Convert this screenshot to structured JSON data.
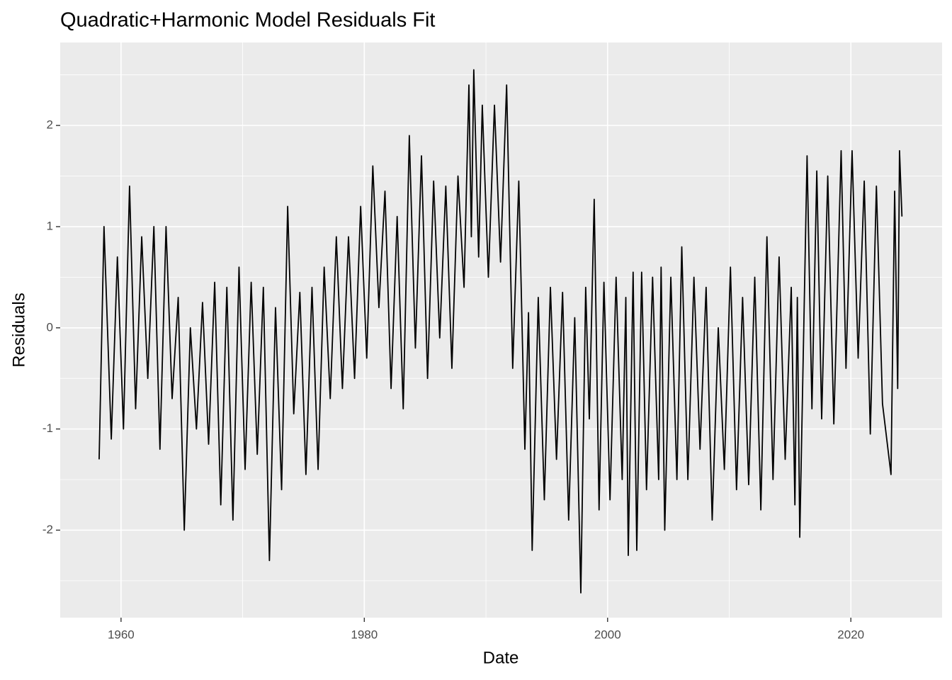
{
  "chart_data": {
    "type": "line",
    "title": "Quadratic+Harmonic Model Residuals Fit",
    "x_label": "Date",
    "y_label": "Residuals",
    "x": [
      1958.2,
      1958.6,
      1959.2,
      1959.7,
      1960.2,
      1960.7,
      1961.2,
      1961.7,
      1962.2,
      1962.7,
      1963.2,
      1963.7,
      1964.2,
      1964.7,
      1965.2,
      1965.7,
      1966.2,
      1966.7,
      1967.2,
      1967.7,
      1968.2,
      1968.7,
      1969.2,
      1969.7,
      1970.2,
      1970.7,
      1971.2,
      1971.7,
      1972.2,
      1972.7,
      1973.2,
      1973.7,
      1974.2,
      1974.7,
      1975.2,
      1975.7,
      1976.2,
      1976.7,
      1977.2,
      1977.7,
      1978.2,
      1978.7,
      1979.2,
      1979.7,
      1980.2,
      1980.7,
      1981.2,
      1981.7,
      1982.2,
      1982.7,
      1983.2,
      1983.7,
      1984.2,
      1984.7,
      1985.2,
      1985.7,
      1986.2,
      1986.7,
      1987.2,
      1987.7,
      1988.2,
      1988.6,
      1988.8,
      1989.0,
      1989.4,
      1989.7,
      1990.2,
      1990.7,
      1991.2,
      1991.7,
      1992.2,
      1992.7,
      1993.2,
      1993.5,
      1993.8,
      1994.3,
      1994.8,
      1995.3,
      1995.8,
      1996.3,
      1996.8,
      1997.3,
      1997.8,
      1998.2,
      1998.5,
      1998.9,
      1999.3,
      1999.7,
      2000.2,
      2000.7,
      2001.2,
      2001.5,
      2001.7,
      2002.1,
      2002.4,
      2002.8,
      2003.2,
      2003.7,
      2004.2,
      2004.4,
      2004.7,
      2005.2,
      2005.7,
      2006.1,
      2006.6,
      2007.1,
      2007.6,
      2008.1,
      2008.6,
      2009.1,
      2009.6,
      2010.1,
      2010.6,
      2011.1,
      2011.6,
      2012.1,
      2012.6,
      2013.1,
      2013.6,
      2014.1,
      2014.6,
      2015.1,
      2015.4,
      2015.6,
      2015.8,
      2016.4,
      2016.8,
      2017.2,
      2017.6,
      2018.1,
      2018.6,
      2019.2,
      2019.6,
      2020.1,
      2020.6,
      2021.1,
      2021.6,
      2022.1,
      2022.6,
      2023.3,
      2023.6,
      2023.85,
      2024.0,
      2024.2
    ],
    "series": [
      {
        "name": "Residuals",
        "color": "#000000",
        "values": [
          -1.3,
          1.0,
          -1.1,
          0.7,
          -1.0,
          1.4,
          -0.8,
          0.9,
          -0.5,
          1.0,
          -1.2,
          1.0,
          -0.7,
          0.3,
          -2.0,
          0.0,
          -1.0,
          0.25,
          -1.15,
          0.45,
          -1.75,
          0.4,
          -1.9,
          0.6,
          -1.4,
          0.45,
          -1.25,
          0.4,
          -2.3,
          0.2,
          -1.6,
          1.2,
          -0.85,
          0.35,
          -1.45,
          0.4,
          -1.4,
          0.6,
          -0.7,
          0.9,
          -0.6,
          0.9,
          -0.5,
          1.2,
          -0.3,
          1.6,
          0.2,
          1.35,
          -0.6,
          1.1,
          -0.8,
          1.9,
          -0.2,
          1.7,
          -0.5,
          1.45,
          -0.1,
          1.4,
          -0.4,
          1.5,
          0.4,
          2.4,
          0.9,
          2.55,
          0.7,
          2.2,
          0.5,
          2.2,
          0.65,
          2.4,
          -0.4,
          1.45,
          -1.2,
          0.15,
          -2.2,
          0.3,
          -1.7,
          0.4,
          -1.3,
          0.35,
          -1.9,
          0.1,
          -2.62,
          0.4,
          -0.9,
          1.27,
          -1.8,
          0.45,
          -1.7,
          0.5,
          -1.5,
          0.3,
          -2.25,
          0.55,
          -2.2,
          0.55,
          -1.6,
          0.5,
          -1.5,
          0.6,
          -2.0,
          0.5,
          -1.5,
          0.8,
          -1.5,
          0.5,
          -1.2,
          0.4,
          -1.9,
          0.0,
          -1.4,
          0.6,
          -1.6,
          0.3,
          -1.55,
          0.5,
          -1.8,
          0.9,
          -1.5,
          0.7,
          -1.3,
          0.4,
          -1.75,
          0.3,
          -2.07,
          1.7,
          -0.8,
          1.55,
          -0.9,
          1.5,
          -0.95,
          1.75,
          -0.4,
          1.75,
          -0.3,
          1.45,
          -1.05,
          1.4,
          -0.75,
          -1.45,
          1.35,
          -0.6,
          1.75,
          1.1
        ]
      }
    ],
    "xlim": [
      1955,
      2027.5
    ],
    "xticks": [
      1960,
      1980,
      2000,
      2020
    ],
    "ylim": [
      -2.865,
      2.82
    ],
    "yticks": [
      -2,
      -1,
      0,
      1,
      2
    ],
    "grid": true
  }
}
